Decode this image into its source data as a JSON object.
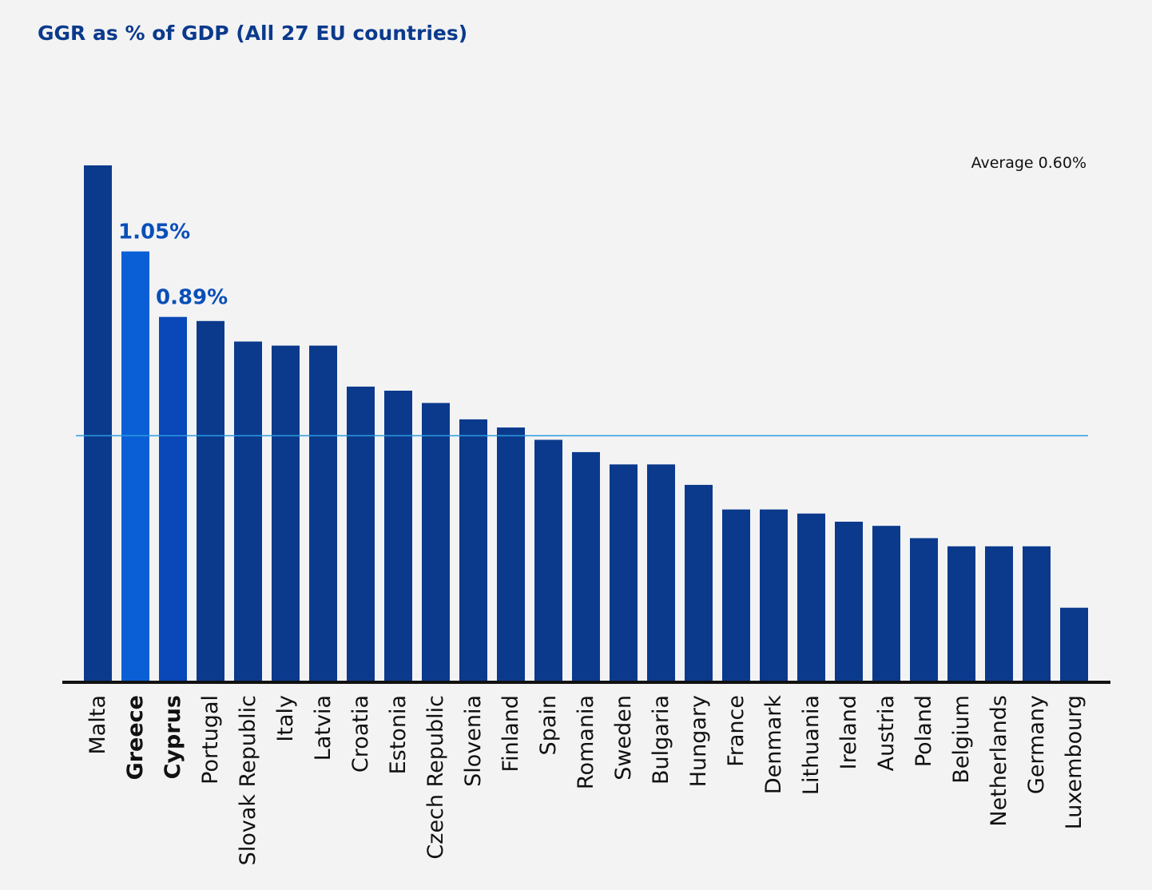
{
  "chart_data": {
    "type": "bar",
    "title": "GGR as % of GDP (All 27 EU countries)",
    "categories": [
      "Malta",
      "Greece",
      "Cyprus",
      "Portugal",
      "Slovak Republic",
      "Italy",
      "Latvia",
      "Croatia",
      "Estonia",
      "Czech Republic",
      "Slovenia",
      "Finland",
      "Spain",
      "Romania",
      "Sweden",
      "Bulgaria",
      "Hungary",
      "France",
      "Denmark",
      "Lithuania",
      "Ireland",
      "Austria",
      "Poland",
      "Belgium",
      "Netherlands",
      "Germany",
      "Luxembourg"
    ],
    "values": [
      1.26,
      1.05,
      0.89,
      0.88,
      0.83,
      0.82,
      0.82,
      0.72,
      0.71,
      0.68,
      0.64,
      0.62,
      0.59,
      0.56,
      0.53,
      0.53,
      0.48,
      0.42,
      0.42,
      0.41,
      0.39,
      0.38,
      0.35,
      0.33,
      0.33,
      0.33,
      0.18
    ],
    "highlighted": [
      "Greece",
      "Cyprus"
    ],
    "data_labels": [
      {
        "category": "Greece",
        "text": "1.05%"
      },
      {
        "category": "Cyprus",
        "text": "0.89%"
      }
    ],
    "average": {
      "value": 0.6,
      "label": "Average 0.60%"
    },
    "xlabel": "",
    "ylabel": "",
    "ylim": [
      0,
      1.26
    ],
    "grid": false,
    "colors": {
      "bar": "#0b3a8c",
      "greece": "#0a5fd6",
      "cyprus": "#0a47b8",
      "label": "#0a4fb8",
      "title": "#0b3a8c",
      "average_line": "#2b9ae0",
      "axis": "#111111",
      "text": "#111111"
    }
  }
}
